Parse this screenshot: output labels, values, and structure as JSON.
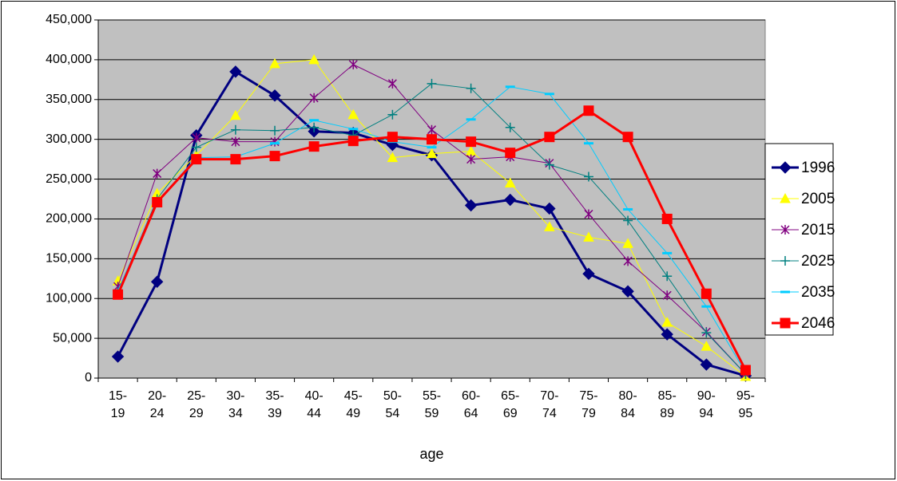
{
  "chart_data": {
    "type": "line",
    "x_label": "age",
    "categories": [
      "15-\n19",
      "20-\n24",
      "25-\n29",
      "30-\n34",
      "35-\n39",
      "40-\n44",
      "45-\n49",
      "50-\n54",
      "55-\n59",
      "60-\n64",
      "65-\n69",
      "70-\n74",
      "75-\n79",
      "80-\n84",
      "85-\n89",
      "90-\n94",
      "95-\n95"
    ],
    "series": [
      {
        "name": "1996",
        "color": "#000080",
        "marker": "diamond",
        "width": 3,
        "values": [
          27000,
          121000,
          305000,
          385000,
          355000,
          310000,
          308000,
          293000,
          280000,
          217000,
          224000,
          213000,
          131000,
          109000,
          55000,
          17000,
          3000
        ]
      },
      {
        "name": "2005",
        "color": "#ffff00",
        "marker": "triangle",
        "width": 1,
        "values": [
          122000,
          232000,
          280000,
          330000,
          395000,
          400000,
          331000,
          277000,
          282000,
          285000,
          245000,
          190000,
          177000,
          169000,
          70000,
          40000,
          2000
        ]
      },
      {
        "name": "2015",
        "color": "#800080",
        "marker": "star",
        "width": 1,
        "values": [
          115000,
          257000,
          302000,
          297000,
          297000,
          352000,
          394000,
          370000,
          312000,
          275000,
          278000,
          270000,
          206000,
          147000,
          104000,
          58000,
          5000
        ]
      },
      {
        "name": "2025",
        "color": "#008080",
        "marker": "plus",
        "width": 1,
        "values": [
          108000,
          225000,
          290000,
          312000,
          311000,
          315000,
          305000,
          331000,
          370000,
          364000,
          315000,
          268000,
          253000,
          198000,
          128000,
          57000,
          5000
        ]
      },
      {
        "name": "2035",
        "color": "#00ccff",
        "marker": "dash",
        "width": 1,
        "values": [
          110000,
          222000,
          277000,
          278000,
          295000,
          324000,
          313000,
          297000,
          290000,
          325000,
          366000,
          357000,
          295000,
          212000,
          157000,
          90000,
          7000
        ]
      },
      {
        "name": "2046",
        "color": "#ff0000",
        "marker": "square",
        "width": 3,
        "values": [
          105000,
          221000,
          275000,
          275000,
          279000,
          291000,
          298000,
          303000,
          300000,
          297000,
          283000,
          303000,
          336000,
          303000,
          200000,
          106000,
          10000
        ]
      }
    ],
    "ylim": [
      0,
      450000
    ],
    "yticks": [
      0,
      {
        "value": 50000,
        "label": "50,000"
      },
      {
        "value": 100000,
        "label": "100,000"
      },
      {
        "value": 150000,
        "label": "150,000"
      },
      {
        "value": 200000,
        "label": "200,000"
      },
      {
        "value": 250000,
        "label": "250,000"
      },
      {
        "value": 300000,
        "label": "300,000"
      },
      {
        "value": 350000,
        "label": "350,000"
      },
      {
        "value": 400000,
        "label": "400,000"
      },
      {
        "value": 450000,
        "label": "450,000"
      }
    ],
    "grid": true,
    "legend": "right",
    "plot_background": "#c0c0c0"
  }
}
